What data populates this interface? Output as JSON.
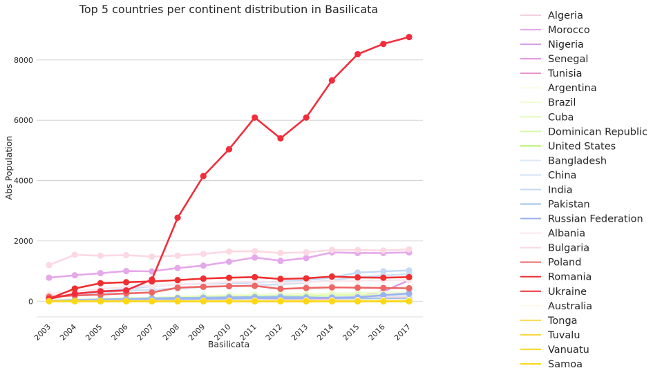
{
  "chart_data": {
    "type": "line",
    "title": "Top 5 countries per continent distribution in Basilicata",
    "xlabel": "Basilicata",
    "ylabel": "Abs Population",
    "x": [
      "2003",
      "2004",
      "2005",
      "2006",
      "2007",
      "2008",
      "2009",
      "2010",
      "2011",
      "2012",
      "2013",
      "2014",
      "2015",
      "2016",
      "2017"
    ],
    "ylim": [
      -520,
      9300
    ],
    "yticks": [
      0,
      2000,
      4000,
      6000,
      8000
    ],
    "ytick_labels": [
      "0",
      "2000",
      "4000",
      "6000",
      "8000"
    ],
    "grid": "horizontal",
    "legend_position": "right",
    "series": [
      {
        "name": "Algeria",
        "color": "#f2cfe0",
        "values": [
          15,
          20,
          30,
          40,
          50,
          60,
          70,
          80,
          90,
          95,
          100,
          110,
          115,
          120,
          125
        ]
      },
      {
        "name": "Morocco",
        "color": "#e5a8ea",
        "values": [
          780,
          860,
          930,
          1000,
          990,
          1100,
          1180,
          1310,
          1450,
          1340,
          1430,
          1620,
          1600,
          1600,
          1620
        ]
      },
      {
        "name": "Nigeria",
        "color": "#d79be8",
        "values": [
          40,
          60,
          80,
          100,
          110,
          120,
          150,
          160,
          170,
          160,
          150,
          160,
          170,
          320,
          700
        ]
      },
      {
        "name": "Senegal",
        "color": "#e38fdc",
        "values": [
          20,
          30,
          40,
          60,
          80,
          120,
          140,
          160,
          150,
          140,
          140,
          180,
          190,
          200,
          220
        ]
      },
      {
        "name": "Tunisia",
        "color": "#e792cd",
        "values": [
          10,
          15,
          20,
          25,
          30,
          35,
          40,
          45,
          50,
          55,
          60,
          65,
          70,
          75,
          80
        ]
      },
      {
        "name": "Argentina",
        "color": "#f6fde6",
        "values": [
          60,
          80,
          90,
          110,
          120,
          150,
          160,
          170,
          170,
          180,
          190,
          200,
          210,
          210,
          220
        ]
      },
      {
        "name": "Brazil",
        "color": "#eefcd4",
        "values": [
          30,
          50,
          80,
          100,
          120,
          150,
          180,
          200,
          220,
          240,
          250,
          260,
          280,
          290,
          300
        ]
      },
      {
        "name": "Cuba",
        "color": "#e2fbb8",
        "values": [
          20,
          40,
          60,
          80,
          100,
          130,
          150,
          170,
          180,
          180,
          190,
          200,
          210,
          220,
          230
        ]
      },
      {
        "name": "Dominican Republic",
        "color": "#d8f9a5",
        "values": [
          15,
          30,
          50,
          70,
          80,
          100,
          120,
          130,
          140,
          150,
          160,
          160,
          170,
          180,
          190
        ]
      },
      {
        "name": "United States",
        "color": "#b5f060",
        "values": [
          5,
          6,
          7,
          8,
          9,
          10,
          11,
          12,
          13,
          14,
          15,
          16,
          17,
          18,
          19
        ]
      },
      {
        "name": "Bangladesh",
        "color": "#dde9f6",
        "values": [
          5,
          10,
          15,
          20,
          30,
          40,
          50,
          60,
          80,
          100,
          120,
          130,
          150,
          170,
          200
        ]
      },
      {
        "name": "China",
        "color": "#cfe0f5",
        "values": [
          120,
          200,
          280,
          350,
          380,
          420,
          470,
          500,
          530,
          560,
          620,
          700,
          800,
          850,
          900
        ]
      },
      {
        "name": "India",
        "color": "#c4d9f6",
        "values": [
          120,
          220,
          320,
          410,
          500,
          560,
          580,
          600,
          620,
          650,
          700,
          790,
          950,
          990,
          1020
        ]
      },
      {
        "name": "Pakistan",
        "color": "#9ec1e5",
        "values": [
          20,
          40,
          60,
          80,
          100,
          110,
          120,
          130,
          140,
          150,
          130,
          110,
          90,
          80,
          70
        ]
      },
      {
        "name": "Russian Federation",
        "color": "#9bb0f2",
        "values": [
          20,
          30,
          40,
          50,
          60,
          70,
          80,
          90,
          100,
          100,
          100,
          120,
          130,
          200,
          260
        ]
      },
      {
        "name": "Albania",
        "color": "#fbe8ec",
        "values": [
          230,
          330,
          410,
          470,
          510,
          560,
          600,
          640,
          650,
          620,
          640,
          660,
          680,
          690,
          700
        ]
      },
      {
        "name": "Bulgaria",
        "color": "#fbd8e2",
        "values": [
          1200,
          1540,
          1510,
          1530,
          1480,
          1510,
          1570,
          1650,
          1660,
          1600,
          1620,
          1700,
          1700,
          1680,
          1720
        ]
      },
      {
        "name": "Poland",
        "color": "#ed6766",
        "values": [
          150,
          190,
          220,
          260,
          290,
          450,
          480,
          500,
          510,
          410,
          440,
          460,
          450,
          440,
          430
        ]
      },
      {
        "name": "Romania",
        "color": "#ef2f2f",
        "values": [
          80,
          420,
          600,
          630,
          660,
          700,
          750,
          780,
          800,
          740,
          760,
          820,
          790,
          780,
          800
        ]
      },
      {
        "name": "Ukraine",
        "color": "#f12d3b",
        "values": [
          80,
          250,
          330,
          360,
          720,
          2770,
          4150,
          5040,
          6090,
          5400,
          6090,
          7320,
          8190,
          8530,
          8760
        ]
      },
      {
        "name": "Australia",
        "color": "#fdfbe8",
        "values": [
          5,
          8,
          10,
          12,
          15,
          18,
          20,
          22,
          25,
          28,
          30,
          32,
          35,
          38,
          40
        ]
      },
      {
        "name": "Tonga",
        "color": "#f8d94c",
        "values": [
          0,
          0,
          0,
          0,
          0,
          0,
          0,
          0,
          0,
          0,
          0,
          0,
          0,
          0,
          0
        ]
      },
      {
        "name": "Tuvalu",
        "color": "#f9d63a",
        "values": [
          0,
          0,
          0,
          0,
          0,
          0,
          0,
          0,
          0,
          0,
          0,
          0,
          0,
          0,
          0
        ]
      },
      {
        "name": "Vanuatu",
        "color": "#fad61e",
        "values": [
          0,
          0,
          0,
          0,
          0,
          0,
          0,
          0,
          0,
          0,
          0,
          0,
          0,
          0,
          0
        ]
      },
      {
        "name": "Samoa",
        "color": "#fcd716",
        "values": [
          0,
          0,
          0,
          0,
          0,
          0,
          0,
          0,
          0,
          0,
          0,
          0,
          0,
          0,
          0
        ]
      }
    ]
  }
}
